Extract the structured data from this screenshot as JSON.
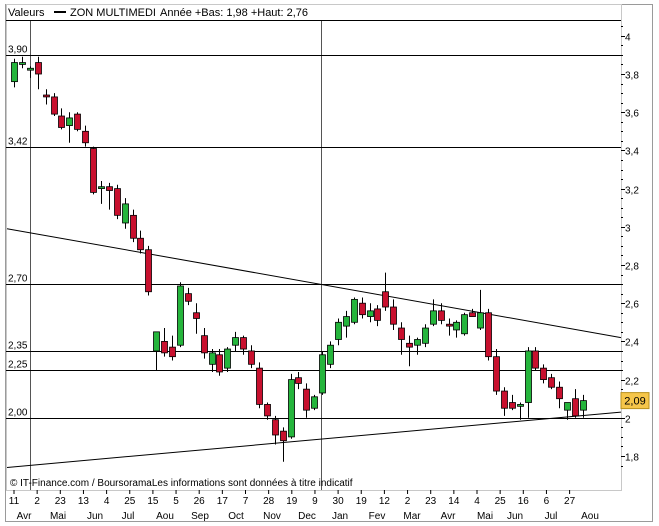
{
  "header": {
    "left_label": "Valeurs",
    "series_name": "ZON MULTIMEDI",
    "summary": "Année +Bas: 1,98 +Haut: 2,76"
  },
  "footer": {
    "credit": "© IT-Finance.com / BoursoramaLes informations sont données à titre indicatif"
  },
  "last_price_label": "2,09",
  "chart_data": {
    "type": "candlestick",
    "title": "ZON MULTIMEDI",
    "y_ticks": [
      "4",
      "3,8",
      "3,6",
      "3,4",
      "3,2",
      "3",
      "2,8",
      "2,6",
      "2,4",
      "2,2",
      "2",
      "1,8"
    ],
    "y_tick_values": [
      4.0,
      3.8,
      3.6,
      3.4,
      3.2,
      3.0,
      2.8,
      2.6,
      2.4,
      2.2,
      2.0,
      1.8
    ],
    "ylim": [
      1.7,
      4.08
    ],
    "x_day_labels": [
      "11",
      "2",
      "23",
      "13",
      "4",
      "25",
      "15",
      "5",
      "26",
      "17",
      "7",
      "28",
      "19",
      "9",
      "30",
      "19",
      "12",
      "2",
      "23",
      "14",
      "4",
      "25",
      "16",
      "6",
      "27"
    ],
    "x_month_labels": [
      "Avr",
      "Mai",
      "Jun",
      "Jul",
      "Aou",
      "Sep",
      "Oct",
      "Nov",
      "Dec",
      "Jan",
      "Fev",
      "Mar",
      "Avr",
      "Mai",
      "Jun",
      "Jul",
      "Aou"
    ],
    "levels": [
      {
        "label": "3,90",
        "value": 3.9
      },
      {
        "label": "3,42",
        "value": 3.42
      },
      {
        "label": "2,70",
        "value": 2.7
      },
      {
        "label": "2,35",
        "value": 2.35
      },
      {
        "label": "2,25",
        "value": 2.25
      },
      {
        "label": "2,00",
        "value": 2.0
      }
    ],
    "trendlines": [
      {
        "from": [
          0,
          2.99
        ],
        "to": [
          94,
          2.42
        ]
      },
      {
        "from": [
          0,
          1.74
        ],
        "to": [
          94,
          2.03
        ]
      }
    ],
    "last_value": 2.09,
    "candles": [
      {
        "o": 3.76,
        "h": 3.88,
        "l": 3.73,
        "c": 3.86
      },
      {
        "o": 3.85,
        "h": 3.89,
        "l": 3.83,
        "c": 3.86
      },
      {
        "o": 3.82,
        "h": 3.84,
        "l": 3.78,
        "c": 3.83
      },
      {
        "o": 3.86,
        "h": 3.89,
        "l": 3.72,
        "c": 3.8
      },
      {
        "o": 3.69,
        "h": 3.72,
        "l": 3.64,
        "c": 3.68
      },
      {
        "o": 3.68,
        "h": 3.7,
        "l": 3.58,
        "c": 3.59
      },
      {
        "o": 3.58,
        "h": 3.62,
        "l": 3.51,
        "c": 3.52
      },
      {
        "o": 3.53,
        "h": 3.6,
        "l": 3.44,
        "c": 3.57
      },
      {
        "o": 3.59,
        "h": 3.6,
        "l": 3.5,
        "c": 3.51
      },
      {
        "o": 3.5,
        "h": 3.53,
        "l": 3.42,
        "c": 3.44
      },
      {
        "o": 3.41,
        "h": 3.42,
        "l": 3.17,
        "c": 3.18
      },
      {
        "o": 3.2,
        "h": 3.24,
        "l": 3.12,
        "c": 3.21
      },
      {
        "o": 3.21,
        "h": 3.23,
        "l": 3.09,
        "c": 3.19
      },
      {
        "o": 3.2,
        "h": 3.22,
        "l": 3.04,
        "c": 3.06
      },
      {
        "o": 3.02,
        "h": 3.15,
        "l": 2.99,
        "c": 3.12
      },
      {
        "o": 3.06,
        "h": 3.09,
        "l": 2.92,
        "c": 2.94
      },
      {
        "o": 2.94,
        "h": 2.98,
        "l": 2.86,
        "c": 2.88
      },
      {
        "o": 2.88,
        "h": 2.9,
        "l": 2.64,
        "c": 2.66
      },
      {
        "o": 2.35,
        "h": 2.45,
        "l": 2.25,
        "c": 2.45
      },
      {
        "o": 2.4,
        "h": 2.47,
        "l": 2.32,
        "c": 2.34
      },
      {
        "o": 2.37,
        "h": 2.43,
        "l": 2.3,
        "c": 2.32
      },
      {
        "o": 2.38,
        "h": 2.71,
        "l": 2.37,
        "c": 2.69
      },
      {
        "o": 2.65,
        "h": 2.68,
        "l": 2.59,
        "c": 2.61
      },
      {
        "o": 2.55,
        "h": 2.6,
        "l": 2.44,
        "c": 2.52
      },
      {
        "o": 2.43,
        "h": 2.47,
        "l": 2.31,
        "c": 2.34
      },
      {
        "o": 2.28,
        "h": 2.36,
        "l": 2.24,
        "c": 2.34
      },
      {
        "o": 2.33,
        "h": 2.36,
        "l": 2.22,
        "c": 2.24
      },
      {
        "o": 2.26,
        "h": 2.37,
        "l": 2.24,
        "c": 2.36
      },
      {
        "o": 2.38,
        "h": 2.45,
        "l": 2.35,
        "c": 2.42
      },
      {
        "o": 2.42,
        "h": 2.43,
        "l": 2.33,
        "c": 2.36
      },
      {
        "o": 2.35,
        "h": 2.38,
        "l": 2.26,
        "c": 2.28
      },
      {
        "o": 2.26,
        "h": 2.29,
        "l": 2.05,
        "c": 2.07
      },
      {
        "o": 2.07,
        "h": 2.08,
        "l": 1.99,
        "c": 2.01
      },
      {
        "o": 1.99,
        "h": 2.01,
        "l": 1.86,
        "c": 1.91
      },
      {
        "o": 1.93,
        "h": 1.95,
        "l": 1.77,
        "c": 1.88
      },
      {
        "o": 1.9,
        "h": 2.23,
        "l": 1.89,
        "c": 2.2
      },
      {
        "o": 2.21,
        "h": 2.24,
        "l": 2.15,
        "c": 2.18
      },
      {
        "o": 2.15,
        "h": 2.18,
        "l": 2.0,
        "c": 2.04
      },
      {
        "o": 2.05,
        "h": 2.12,
        "l": 2.04,
        "c": 2.11
      },
      {
        "o": 2.13,
        "h": 2.35,
        "l": 2.12,
        "c": 2.33
      },
      {
        "o": 2.28,
        "h": 2.4,
        "l": 2.26,
        "c": 2.38
      },
      {
        "o": 2.41,
        "h": 2.52,
        "l": 2.38,
        "c": 2.5
      },
      {
        "o": 2.48,
        "h": 2.56,
        "l": 2.42,
        "c": 2.53
      },
      {
        "o": 2.5,
        "h": 2.63,
        "l": 2.49,
        "c": 2.62
      },
      {
        "o": 2.6,
        "h": 2.63,
        "l": 2.52,
        "c": 2.54
      },
      {
        "o": 2.53,
        "h": 2.6,
        "l": 2.5,
        "c": 2.56
      },
      {
        "o": 2.57,
        "h": 2.59,
        "l": 2.48,
        "c": 2.51
      },
      {
        "o": 2.66,
        "h": 2.76,
        "l": 2.56,
        "c": 2.58
      },
      {
        "o": 2.58,
        "h": 2.62,
        "l": 2.46,
        "c": 2.49
      },
      {
        "o": 2.47,
        "h": 2.5,
        "l": 2.33,
        "c": 2.41
      },
      {
        "o": 2.39,
        "h": 2.43,
        "l": 2.27,
        "c": 2.37
      },
      {
        "o": 2.38,
        "h": 2.42,
        "l": 2.33,
        "c": 2.41
      },
      {
        "o": 2.39,
        "h": 2.49,
        "l": 2.37,
        "c": 2.47
      },
      {
        "o": 2.49,
        "h": 2.62,
        "l": 2.48,
        "c": 2.56
      },
      {
        "o": 2.56,
        "h": 2.6,
        "l": 2.49,
        "c": 2.51
      },
      {
        "o": 2.49,
        "h": 2.52,
        "l": 2.43,
        "c": 2.48
      },
      {
        "o": 2.46,
        "h": 2.51,
        "l": 2.42,
        "c": 2.5
      },
      {
        "o": 2.44,
        "h": 2.55,
        "l": 2.43,
        "c": 2.54
      },
      {
        "o": 2.55,
        "h": 2.57,
        "l": 2.53,
        "c": 2.53
      },
      {
        "o": 2.47,
        "h": 2.67,
        "l": 2.46,
        "c": 2.55
      },
      {
        "o": 2.55,
        "h": 2.57,
        "l": 2.3,
        "c": 2.32
      },
      {
        "o": 2.32,
        "h": 2.36,
        "l": 2.12,
        "c": 2.14
      },
      {
        "o": 2.14,
        "h": 2.16,
        "l": 2.01,
        "c": 2.05
      },
      {
        "o": 2.08,
        "h": 2.12,
        "l": 2.04,
        "c": 2.05
      },
      {
        "o": 2.06,
        "h": 2.08,
        "l": 1.99,
        "c": 2.07
      },
      {
        "o": 2.08,
        "h": 2.37,
        "l": 2.0,
        "c": 2.35
      },
      {
        "o": 2.35,
        "h": 2.37,
        "l": 2.25,
        "c": 2.26
      },
      {
        "o": 2.26,
        "h": 2.28,
        "l": 2.18,
        "c": 2.2
      },
      {
        "o": 2.21,
        "h": 2.23,
        "l": 2.15,
        "c": 2.16
      },
      {
        "o": 2.16,
        "h": 2.19,
        "l": 2.05,
        "c": 2.1
      },
      {
        "o": 2.04,
        "h": 2.07,
        "l": 1.99,
        "c": 2.08
      },
      {
        "o": 2.1,
        "h": 2.15,
        "l": 2.0,
        "c": 2.01
      },
      {
        "o": 2.04,
        "h": 2.12,
        "l": 2.0,
        "c": 2.09
      }
    ]
  }
}
